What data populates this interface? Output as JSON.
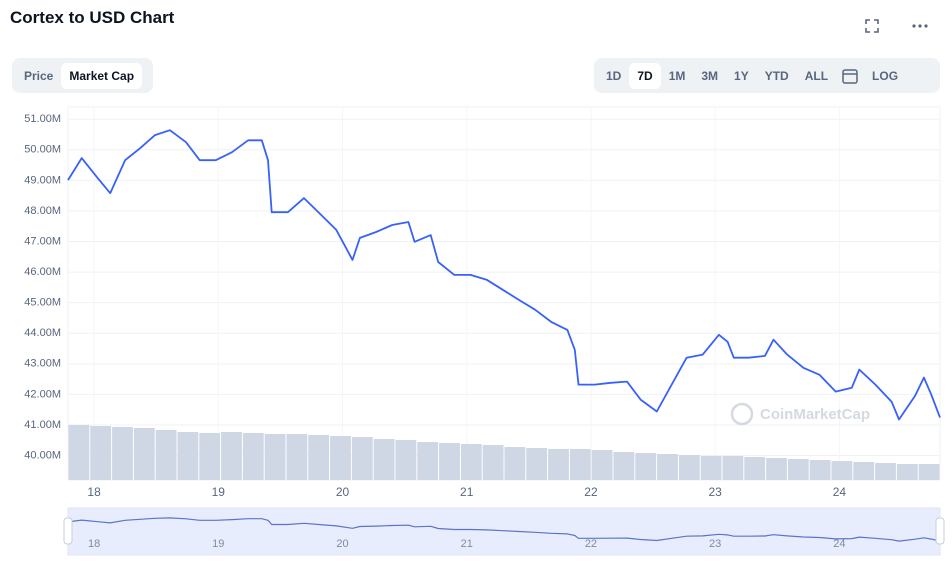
{
  "chart_data": {
    "type": "line",
    "title": "Cortex to USD Chart",
    "x": [
      17.79,
      17.9,
      18.03,
      18.13,
      18.25,
      18.37,
      18.49,
      18.61,
      18.74,
      18.85,
      18.98,
      19.11,
      19.24,
      19.35,
      19.4,
      19.43,
      19.56,
      19.69,
      19.82,
      19.95,
      20.08,
      20.14,
      20.27,
      20.4,
      20.53,
      20.58,
      20.71,
      20.77,
      20.9,
      21.03,
      21.16,
      21.29,
      21.42,
      21.55,
      21.68,
      21.81,
      21.87,
      21.9,
      22.03,
      22.16,
      22.29,
      22.4,
      22.53,
      22.65,
      22.77,
      22.9,
      23.03,
      23.1,
      23.15,
      23.27,
      23.4,
      23.47,
      23.58,
      23.71,
      23.84,
      23.97,
      24.1,
      24.16,
      24.29,
      24.42,
      24.48,
      24.61,
      24.68,
      24.74,
      24.81
    ],
    "values": [
      49.01,
      49.73,
      49.07,
      48.58,
      49.66,
      50.05,
      50.48,
      50.64,
      50.25,
      49.66,
      49.66,
      49.92,
      50.31,
      50.31,
      49.66,
      47.96,
      47.96,
      48.42,
      47.9,
      47.38,
      46.4,
      47.12,
      47.31,
      47.54,
      47.64,
      46.99,
      47.21,
      46.33,
      45.91,
      45.91,
      45.75,
      45.42,
      45.09,
      44.77,
      44.37,
      44.11,
      43.46,
      42.32,
      42.32,
      42.38,
      42.42,
      41.83,
      41.44,
      42.32,
      43.2,
      43.3,
      43.95,
      43.72,
      43.2,
      43.2,
      43.26,
      43.79,
      43.3,
      42.87,
      42.64,
      42.09,
      42.22,
      42.81,
      42.32,
      41.76,
      41.18,
      41.96,
      42.55,
      41.99,
      41.24
    ],
    "color": "#3861fb",
    "xlim": [
      17.79,
      24.81
    ],
    "xticks": [
      18,
      19,
      20,
      21,
      22,
      23,
      24
    ],
    "ylim": [
      39.2,
      51.4
    ],
    "yticks": [
      {
        "value": 40,
        "label": "40.00M"
      },
      {
        "value": 41,
        "label": "41.00M"
      },
      {
        "value": 42,
        "label": "42.00M"
      },
      {
        "value": 43,
        "label": "43.00M"
      },
      {
        "value": 44,
        "label": "44.00M"
      },
      {
        "value": 45,
        "label": "45.00M"
      },
      {
        "value": 46,
        "label": "46.00M"
      },
      {
        "value": 47,
        "label": "47.00M"
      },
      {
        "value": 48,
        "label": "48.00M"
      },
      {
        "value": 49,
        "label": "49.00M"
      },
      {
        "value": 50,
        "label": "50.00M"
      },
      {
        "value": 51,
        "label": "51.00M"
      }
    ],
    "grid": true,
    "log_scale": false,
    "volume": {
      "values": [
        55,
        54,
        53,
        52,
        50,
        48,
        47,
        48,
        47,
        46,
        46,
        45,
        44,
        43,
        41,
        40,
        38,
        37,
        36,
        35,
        33,
        32,
        31,
        31,
        30,
        28,
        27,
        26,
        25,
        24,
        24,
        23,
        22,
        21,
        20,
        19,
        18,
        17,
        16,
        16
      ],
      "color": "#cfd6e4",
      "ylim": [
        0,
        100
      ]
    }
  },
  "controls": {
    "tabs": [
      "Price",
      "Market Cap"
    ],
    "ranges": [
      "1D",
      "7D",
      "1M",
      "3M",
      "1Y",
      "YTD",
      "ALL"
    ],
    "log_label": "LOG"
  },
  "watermark": "CoinMarketCap"
}
